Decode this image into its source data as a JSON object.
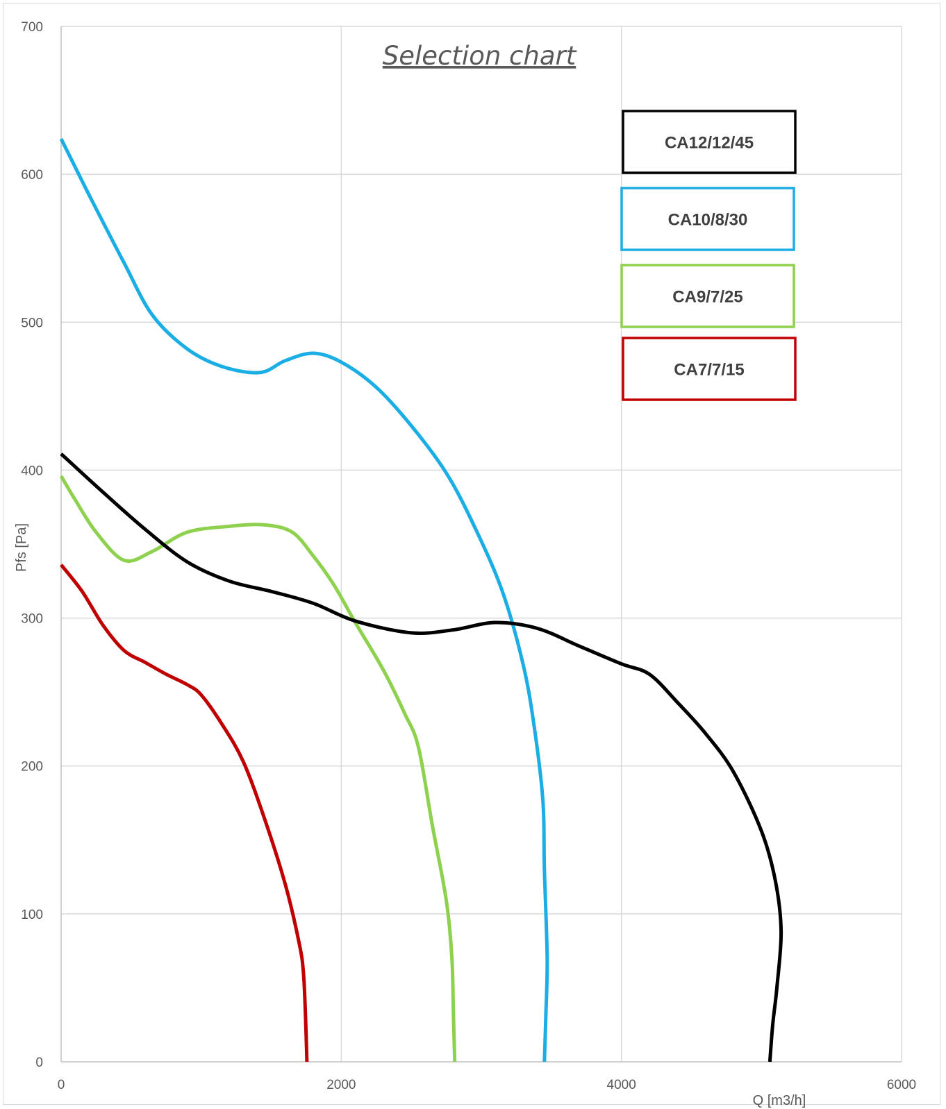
{
  "chart_data": {
    "type": "line",
    "title": "Selection chart",
    "xlabel": "Q [m3/h]",
    "ylabel": "Pfs [Pa]",
    "xlim": [
      0,
      6000
    ],
    "ylim": [
      0,
      700
    ],
    "x_ticks": [
      "0",
      "2000",
      "4000",
      "6000"
    ],
    "y_ticks": [
      "0",
      "100",
      "200",
      "300",
      "400",
      "500",
      "600",
      "700"
    ],
    "grid": true,
    "legend_position": "top-right",
    "series": [
      {
        "name": "CA12/12/45",
        "color": "#000000",
        "points": [
          [
            0,
            411
          ],
          [
            300,
            385
          ],
          [
            600,
            360
          ],
          [
            900,
            338
          ],
          [
            1200,
            325
          ],
          [
            1500,
            318
          ],
          [
            1800,
            310
          ],
          [
            2100,
            298
          ],
          [
            2500,
            290
          ],
          [
            2800,
            292
          ],
          [
            3100,
            297
          ],
          [
            3400,
            293
          ],
          [
            3700,
            281
          ],
          [
            4000,
            269
          ],
          [
            4200,
            262
          ],
          [
            4400,
            243
          ],
          [
            4600,
            222
          ],
          [
            4800,
            196
          ],
          [
            5000,
            156
          ],
          [
            5100,
            122
          ],
          [
            5140,
            88
          ],
          [
            5110,
            50
          ],
          [
            5080,
            25
          ],
          [
            5060,
            0
          ]
        ]
      },
      {
        "name": "CA10/8/30",
        "color": "#1aaee5",
        "points": [
          [
            0,
            624
          ],
          [
            200,
            586
          ],
          [
            450,
            540
          ],
          [
            650,
            505
          ],
          [
            900,
            482
          ],
          [
            1150,
            470
          ],
          [
            1420,
            466
          ],
          [
            1600,
            474
          ],
          [
            1800,
            479
          ],
          [
            2000,
            473
          ],
          [
            2250,
            456
          ],
          [
            2500,
            430
          ],
          [
            2750,
            398
          ],
          [
            2950,
            362
          ],
          [
            3150,
            318
          ],
          [
            3300,
            268
          ],
          [
            3380,
            225
          ],
          [
            3440,
            176
          ],
          [
            3450,
            130
          ],
          [
            3470,
            70
          ],
          [
            3460,
            30
          ],
          [
            3450,
            0
          ]
        ]
      },
      {
        "name": "CA9/7/25",
        "color": "#8ed14e",
        "points": [
          [
            0,
            396
          ],
          [
            100,
            380
          ],
          [
            250,
            358
          ],
          [
            450,
            339
          ],
          [
            650,
            345
          ],
          [
            900,
            358
          ],
          [
            1200,
            362
          ],
          [
            1450,
            363
          ],
          [
            1650,
            358
          ],
          [
            1800,
            342
          ],
          [
            1950,
            322
          ],
          [
            2100,
            297
          ],
          [
            2300,
            265
          ],
          [
            2450,
            236
          ],
          [
            2550,
            213
          ],
          [
            2650,
            160
          ],
          [
            2750,
            109
          ],
          [
            2790,
            70
          ],
          [
            2800,
            35
          ],
          [
            2810,
            0
          ]
        ]
      },
      {
        "name": "CA7/7/15",
        "color": "#c00000",
        "points": [
          [
            0,
            336
          ],
          [
            150,
            318
          ],
          [
            300,
            295
          ],
          [
            450,
            278
          ],
          [
            600,
            270
          ],
          [
            750,
            262
          ],
          [
            900,
            255
          ],
          [
            1000,
            248
          ],
          [
            1150,
            228
          ],
          [
            1300,
            203
          ],
          [
            1450,
            165
          ],
          [
            1600,
            120
          ],
          [
            1700,
            80
          ],
          [
            1730,
            60
          ],
          [
            1745,
            30
          ],
          [
            1755,
            0
          ]
        ]
      }
    ]
  }
}
